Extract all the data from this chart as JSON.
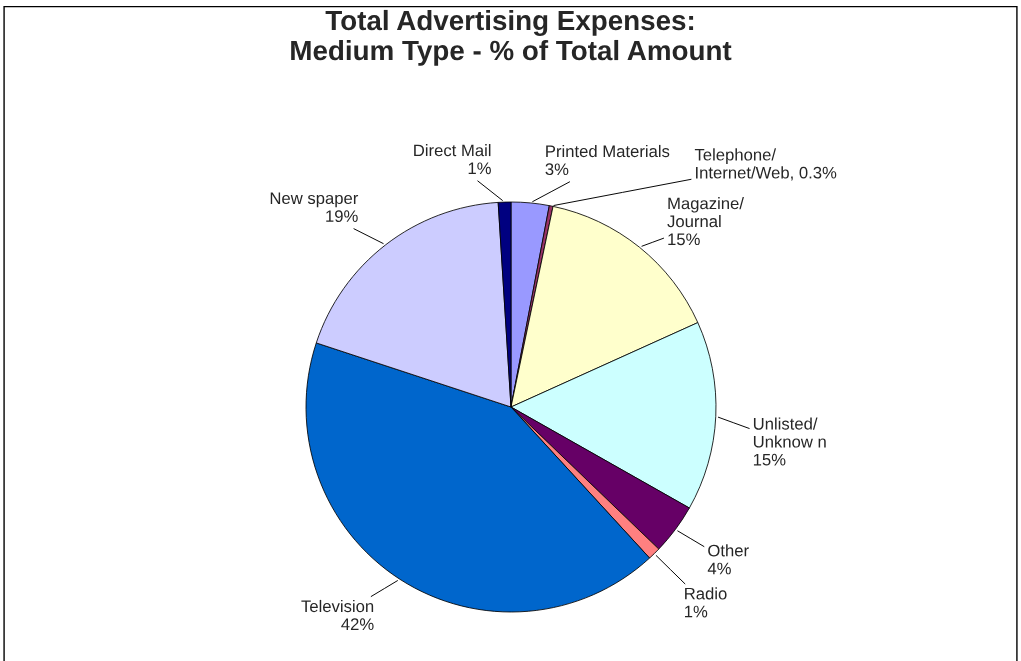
{
  "chart_data": {
    "type": "pie",
    "title": "Total Advertising Expenses:\nMedium Type - % of Total Amount",
    "categories": [
      "Printed Materials",
      "Telephone/\nInternet/Web, 0.3%",
      "Magazine/\nJournal",
      "Unlisted/\nUnknow n",
      "Other",
      "Radio",
      "Television",
      "New spaper",
      "Direct Mail"
    ],
    "values": [
      3,
      0.3,
      15,
      15,
      4,
      1,
      42,
      19,
      1
    ],
    "value_labels": [
      "3%",
      null,
      "15%",
      "15%",
      "4%",
      "1%",
      "42%",
      "19%",
      "1%"
    ],
    "colors": [
      "#9999ff",
      "#993366",
      "#ffffcc",
      "#ccffff",
      "#660066",
      "#ff8080",
      "#0066cc",
      "#ccccff",
      "#000080"
    ]
  }
}
